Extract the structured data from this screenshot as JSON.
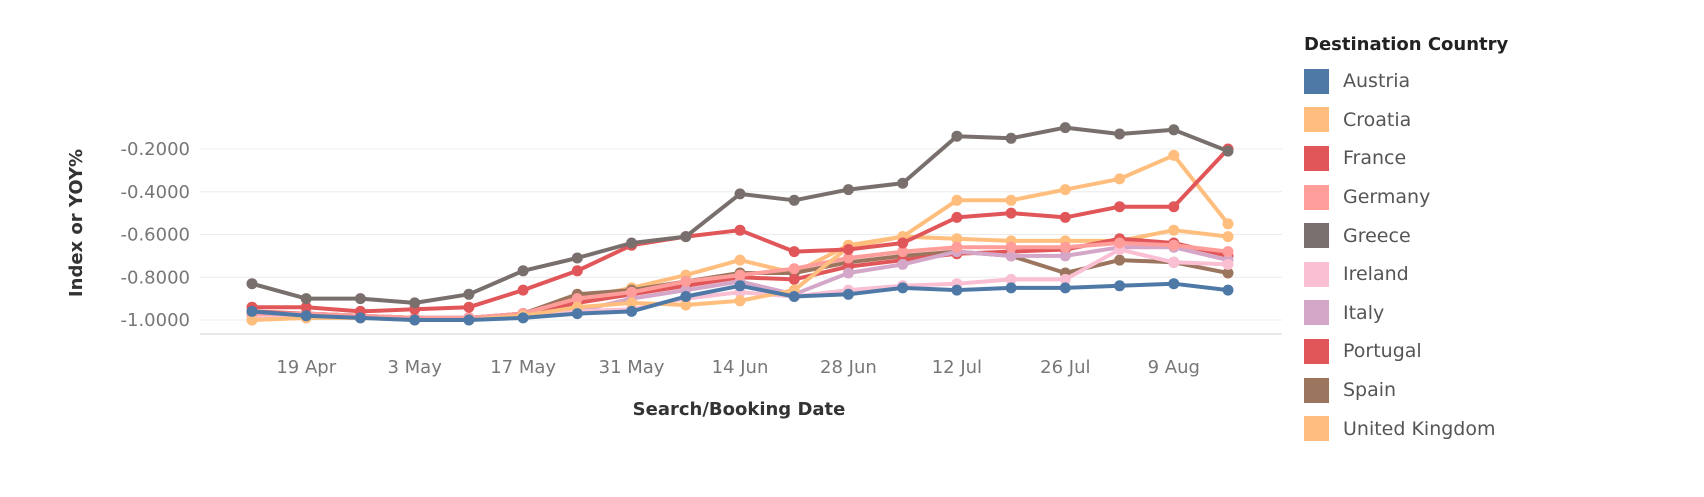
{
  "chart_data": {
    "type": "line",
    "xlabel": "Search/Booking Date",
    "ylabel": "Index or YOY%",
    "ylim": [
      -1.05,
      -0.08
    ],
    "yticks": [
      -0.2,
      -0.4,
      -0.6,
      -0.8,
      -1.0
    ],
    "ytick_labels": [
      "-0.2000",
      "-0.4000",
      "-0.6000",
      "-0.8000",
      "-1.0000"
    ],
    "x": [
      "2020-04-12",
      "2020-04-19",
      "2020-04-26",
      "2020-05-03",
      "2020-05-10",
      "2020-05-17",
      "2020-05-24",
      "2020-05-31",
      "2020-06-07",
      "2020-06-14",
      "2020-06-21",
      "2020-06-28",
      "2020-07-05",
      "2020-07-12",
      "2020-07-19",
      "2020-07-26",
      "2020-08-02",
      "2020-08-09",
      "2020-08-16"
    ],
    "xtick_dates": [
      "2020-04-19",
      "2020-05-03",
      "2020-05-17",
      "2020-05-31",
      "2020-06-14",
      "2020-06-28",
      "2020-07-12",
      "2020-07-26",
      "2020-08-09"
    ],
    "xtick_labels": [
      "19 Apr",
      "3 May",
      "17 May",
      "31 May",
      "14 Jun",
      "28 Jun",
      "12 Jul",
      "26 Jul",
      "9 Aug"
    ],
    "legend_title": "Destination Country",
    "legend_position": "right",
    "grid": true,
    "series": [
      {
        "name": "United Kingdom",
        "color": "#ffbe7d",
        "values": [
          -1.0,
          -0.99,
          -0.99,
          -0.99,
          -0.99,
          -0.97,
          -0.9,
          -0.85,
          -0.79,
          -0.72,
          -0.78,
          -0.65,
          -0.61,
          -0.62,
          -0.63,
          -0.63,
          -0.63,
          -0.58,
          -0.61
        ]
      },
      {
        "name": "Spain",
        "color": "#9c755f",
        "values": [
          -0.97,
          -0.97,
          -0.98,
          -0.99,
          -0.99,
          -0.97,
          -0.88,
          -0.86,
          -0.82,
          -0.78,
          -0.78,
          -0.73,
          -0.7,
          -0.68,
          -0.7,
          -0.78,
          -0.72,
          -0.73,
          -0.78
        ]
      },
      {
        "name": "Portugal",
        "color": "#e15759",
        "values": [
          -0.96,
          -0.97,
          -0.98,
          -0.99,
          -0.99,
          -0.97,
          -0.92,
          -0.88,
          -0.84,
          -0.8,
          -0.81,
          -0.75,
          -0.72,
          -0.69,
          -0.68,
          -0.67,
          -0.62,
          -0.64,
          -0.7
        ]
      },
      {
        "name": "Italy",
        "color": "#d4a6c8",
        "values": [
          -0.97,
          -0.97,
          -0.98,
          -0.99,
          -0.99,
          -0.97,
          -0.96,
          -0.9,
          -0.86,
          -0.82,
          -0.88,
          -0.78,
          -0.74,
          -0.68,
          -0.7,
          -0.7,
          -0.66,
          -0.66,
          -0.72
        ]
      },
      {
        "name": "Ireland",
        "color": "#fabfd2",
        "values": [
          -0.98,
          -0.98,
          -0.98,
          -0.99,
          -0.99,
          -0.98,
          -0.96,
          -0.95,
          -0.9,
          -0.87,
          -0.89,
          -0.86,
          -0.84,
          -0.83,
          -0.81,
          -0.81,
          -0.67,
          -0.73,
          -0.74
        ]
      },
      {
        "name": "Germany",
        "color": "#ff9d9a",
        "values": [
          -0.97,
          -0.97,
          -0.98,
          -0.99,
          -0.99,
          -0.97,
          -0.9,
          -0.87,
          -0.82,
          -0.79,
          -0.76,
          -0.71,
          -0.68,
          -0.66,
          -0.66,
          -0.66,
          -0.64,
          -0.65,
          -0.68
        ]
      },
      {
        "name": "Croatia",
        "color": "#ffbe7d",
        "values": [
          -1.0,
          -0.99,
          -0.99,
          -1.0,
          -1.0,
          -0.98,
          -0.94,
          -0.92,
          -0.93,
          -0.91,
          -0.86,
          -0.66,
          -0.61,
          -0.44,
          -0.44,
          -0.39,
          -0.34,
          -0.23,
          -0.55
        ]
      },
      {
        "name": "France",
        "color": "#e15759",
        "values": [
          -0.94,
          -0.94,
          -0.96,
          -0.95,
          -0.94,
          -0.86,
          -0.77,
          -0.65,
          -0.61,
          -0.58,
          -0.68,
          -0.67,
          -0.64,
          -0.52,
          -0.5,
          -0.52,
          -0.47,
          -0.47,
          -0.2
        ]
      },
      {
        "name": "Greece",
        "color": "#79706e",
        "values": [
          -0.83,
          -0.9,
          -0.9,
          -0.92,
          -0.88,
          -0.77,
          -0.71,
          -0.64,
          -0.61,
          -0.41,
          -0.44,
          -0.39,
          -0.36,
          -0.14,
          -0.15,
          -0.1,
          -0.13,
          -0.11,
          -0.21
        ]
      },
      {
        "name": "Austria",
        "color": "#4e79a7",
        "values": [
          -0.96,
          -0.98,
          -0.99,
          -1.0,
          -1.0,
          -0.99,
          -0.97,
          -0.96,
          -0.89,
          -0.84,
          -0.89,
          -0.88,
          -0.85,
          -0.86,
          -0.85,
          -0.85,
          -0.84,
          -0.83,
          -0.86
        ]
      }
    ],
    "legend_items": [
      {
        "name": "Austria",
        "color": "#4e79a7"
      },
      {
        "name": "Croatia",
        "color": "#ffbe7d"
      },
      {
        "name": "France",
        "color": "#e15759"
      },
      {
        "name": "Germany",
        "color": "#ff9d9a"
      },
      {
        "name": "Greece",
        "color": "#79706e"
      },
      {
        "name": "Ireland",
        "color": "#fabfd2"
      },
      {
        "name": "Italy",
        "color": "#d4a6c8"
      },
      {
        "name": "Portugal",
        "color": "#e15759"
      },
      {
        "name": "Spain",
        "color": "#9c755f"
      },
      {
        "name": "United Kingdom",
        "color": "#ffbe7d"
      }
    ]
  }
}
